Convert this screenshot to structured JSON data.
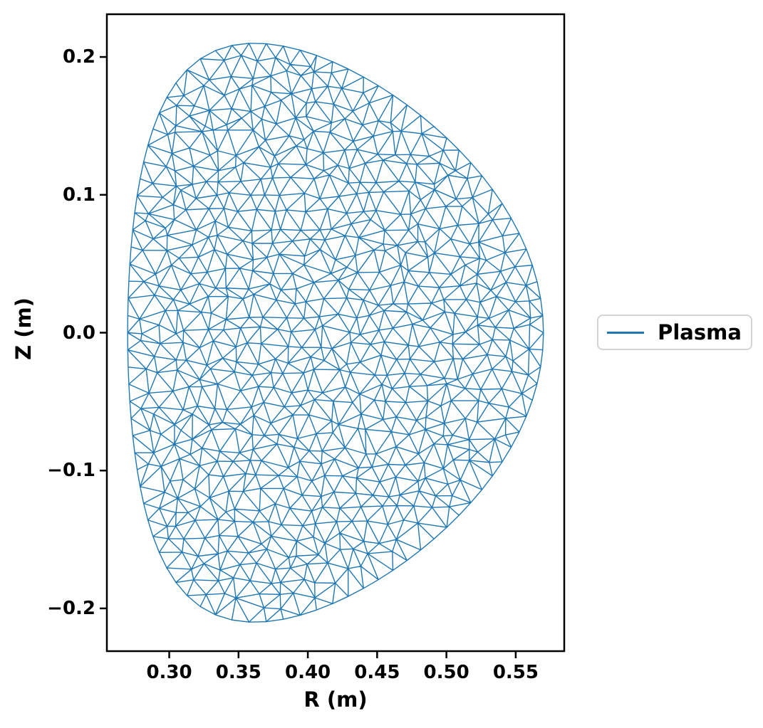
{
  "chart_data": {
    "type": "mesh",
    "title": "",
    "xlabel": "R (m)",
    "ylabel": "Z (m)",
    "xlim": [
      0.255,
      0.585
    ],
    "ylim": [
      -0.231,
      0.231
    ],
    "xticks": [
      0.3,
      0.35,
      0.4,
      0.45,
      0.5,
      0.55
    ],
    "xtick_labels": [
      "0.30",
      "0.35",
      "0.40",
      "0.45",
      "0.50",
      "0.55"
    ],
    "yticks": [
      0.2,
      0.1,
      0.0,
      -0.1,
      -0.2
    ],
    "ytick_labels": [
      "0.2",
      "0.1",
      "0.0",
      "−0.1",
      "−0.2"
    ],
    "grid": false,
    "axes_color": "#000000",
    "background": "#ffffff",
    "legend": {
      "position": "center-right-outside-axes",
      "entries": [
        {
          "label": "Plasma",
          "color": "#1f77b4"
        }
      ]
    },
    "series": [
      {
        "name": "Plasma",
        "kind": "unstructured-triangular-mesh",
        "color": "#1f77b4",
        "boundary_shape": {
          "model": "miller-d-shape",
          "R0": 0.42,
          "a": 0.15,
          "kappa": 1.4,
          "delta": 0.4,
          "formula": "R(t)=R0+a*cos(t+delta*sin(t)); Z(t)=kappa*a*sin(t)"
        },
        "extents": {
          "R_min": 0.27,
          "R_max": 0.57,
          "Z_min": -0.21,
          "Z_max": 0.21
        },
        "element_size_m": 0.0125,
        "approx_vertices": 760
      }
    ]
  }
}
